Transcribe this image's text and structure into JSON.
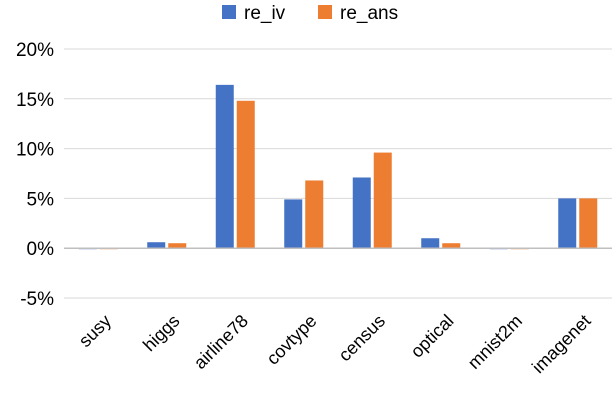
{
  "chart_data": {
    "type": "bar",
    "title": "",
    "xlabel": "",
    "ylabel": "",
    "categories": [
      "susy",
      "higgs",
      "airline78",
      "covtype",
      "census",
      "optical",
      "mnist2m",
      "imagenet"
    ],
    "series": [
      {
        "name": "re_iv",
        "color": "#4472C4",
        "values": [
          -0.1,
          0.6,
          16.4,
          4.9,
          7.1,
          1.0,
          -0.1,
          5.0
        ]
      },
      {
        "name": "re_ans",
        "color": "#ED7D31",
        "values": [
          -0.1,
          0.5,
          14.8,
          6.8,
          9.6,
          0.5,
          0.0,
          5.0
        ]
      }
    ],
    "ylim": [
      -5,
      20
    ],
    "y_ticks": [
      20,
      15,
      10,
      5,
      0,
      -5
    ],
    "y_tick_labels": [
      "20%",
      "15%",
      "10%",
      "5%",
      "0%",
      "-5%"
    ],
    "y_unit": "%",
    "grid": true,
    "legend": "top-center"
  }
}
